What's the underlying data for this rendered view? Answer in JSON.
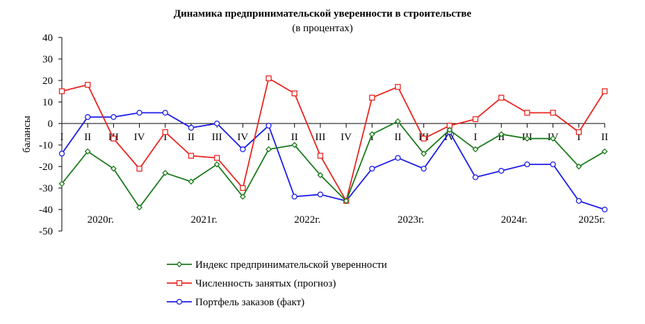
{
  "chart_data": {
    "type": "line",
    "title": "Динамика предпринимательской уверенности в строительстве",
    "subtitle": "(в процентах)",
    "xlabel": "",
    "ylabel": "балансы",
    "ylim": [
      -50,
      40
    ],
    "y_ticks": [
      "40",
      "30",
      "20",
      "10",
      "0",
      "-10",
      "-20",
      "-30",
      "-40",
      "-50"
    ],
    "grid": false,
    "legend_position": "bottom",
    "categories": [
      "I",
      "II",
      "III",
      "IV",
      "I",
      "II",
      "III",
      "IV",
      "I",
      "II",
      "III",
      "IV",
      "I",
      "II",
      "III",
      "IV",
      "I",
      "II",
      "III",
      "IV",
      "I",
      "II"
    ],
    "years": [
      {
        "label": "2020г.",
        "start": 0,
        "end": 3
      },
      {
        "label": "2021г.",
        "start": 4,
        "end": 7
      },
      {
        "label": "2022г.",
        "start": 8,
        "end": 11
      },
      {
        "label": "2023г.",
        "start": 12,
        "end": 15
      },
      {
        "label": "2024г.",
        "start": 16,
        "end": 19
      },
      {
        "label": "2025г.",
        "start": 20,
        "end": 21
      }
    ],
    "series": [
      {
        "name": "Индекс предпринимательской уверенности",
        "color": "#1a7a1a",
        "marker": "diamond",
        "values": [
          -28,
          -13,
          -21,
          -39,
          -23,
          -27,
          -19,
          -34,
          -12,
          -10,
          -24,
          -36,
          -5,
          1,
          -14,
          -3,
          -12,
          -5,
          -7,
          -7,
          -20,
          -13
        ]
      },
      {
        "name": "Численность занятых (прогноз)",
        "color": "#e8231e",
        "marker": "square",
        "values": [
          15,
          18,
          -7,
          -21,
          -4,
          -15,
          -16,
          -30,
          21,
          14,
          -15,
          -36,
          12,
          17,
          -7,
          -1,
          2,
          12,
          5,
          5,
          -4,
          15
        ]
      },
      {
        "name": "Портфель заказов (факт)",
        "color": "#1a1ae8",
        "marker": "circle",
        "values": [
          -14,
          3,
          3,
          5,
          5,
          -2,
          0,
          -12,
          -1,
          -34,
          -33,
          -36,
          -21,
          -16,
          -21,
          -4,
          -25,
          -22,
          -19,
          -19,
          -36,
          -40
        ]
      }
    ]
  }
}
